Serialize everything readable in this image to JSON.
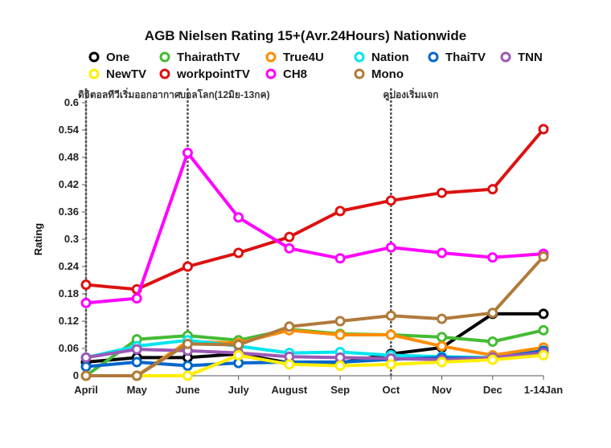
{
  "chart_data": {
    "type": "line",
    "title": "AGB Nielsen Rating 15+(Avr.24Hours) Nationwide",
    "xlabel": "",
    "ylabel": "Rating",
    "ylim": [
      0,
      0.6
    ],
    "yticks": [
      "0",
      "0.06",
      "0.12",
      "0.18",
      "0.24",
      "0.3",
      "0.36",
      "0.42",
      "0.48",
      "0.54",
      "0.6"
    ],
    "categories": [
      "April",
      "May",
      "June",
      "July",
      "August",
      "Sep",
      "Oct",
      "Nov",
      "Dec",
      "1-14Jan"
    ],
    "grid": false,
    "legend_position": "top",
    "series": [
      {
        "name": "One",
        "color": "#000000",
        "values": [
          0.03,
          0.04,
          0.04,
          0.048,
          0.028,
          0.028,
          0.048,
          0.062,
          0.136,
          0.136
        ]
      },
      {
        "name": "ThairathTV",
        "color": "#44bb33",
        "values": [
          0.0,
          0.08,
          0.088,
          0.078,
          0.102,
          0.092,
          0.09,
          0.085,
          0.075,
          0.1
        ]
      },
      {
        "name": "True4U",
        "color": "#ff8c00",
        "values": [
          0.0,
          0.0,
          0.075,
          0.072,
          0.1,
          0.09,
          0.09,
          0.065,
          0.045,
          0.062
        ]
      },
      {
        "name": "Nation",
        "color": "#00e5ee",
        "values": [
          0.04,
          0.065,
          0.078,
          0.065,
          0.05,
          0.052,
          0.045,
          0.042,
          0.04,
          0.05
        ]
      },
      {
        "name": "ThaiTV",
        "color": "#0066cc",
        "values": [
          0.02,
          0.03,
          0.022,
          0.028,
          0.03,
          0.03,
          0.036,
          0.04,
          0.038,
          0.055
        ]
      },
      {
        "name": "TNN",
        "color": "#9b59b6",
        "values": [
          0.04,
          0.058,
          0.055,
          0.05,
          0.042,
          0.04,
          0.038,
          0.035,
          0.04,
          0.05
        ]
      },
      {
        "name": "NewTV",
        "color": "#ffee00",
        "values": [
          0.0,
          0.0,
          0.0,
          0.045,
          0.025,
          0.022,
          0.025,
          0.03,
          0.035,
          0.045
        ]
      },
      {
        "name": "workpointTV",
        "color": "#dd1111",
        "values": [
          0.2,
          0.19,
          0.24,
          0.27,
          0.305,
          0.362,
          0.385,
          0.402,
          0.41,
          0.542
        ]
      },
      {
        "name": "CH8",
        "color": "#ff00ff",
        "values": [
          0.16,
          0.17,
          0.49,
          0.348,
          0.28,
          0.258,
          0.282,
          0.27,
          0.26,
          0.268
        ]
      },
      {
        "name": "Mono",
        "color": "#b07a3a",
        "values": [
          0.0,
          0.0,
          0.07,
          0.068,
          0.108,
          0.12,
          0.132,
          0.125,
          0.138,
          0.262
        ]
      }
    ],
    "annotations": [
      {
        "text": "ดิจิตอลทีวีเริ่มออกอากาศ",
        "at_category": "April"
      },
      {
        "text": "บอลโลก(12มิย-13กค)",
        "at_category": "June"
      },
      {
        "text": "คูปองเริ่มแจก",
        "at_category": "Oct"
      }
    ]
  }
}
